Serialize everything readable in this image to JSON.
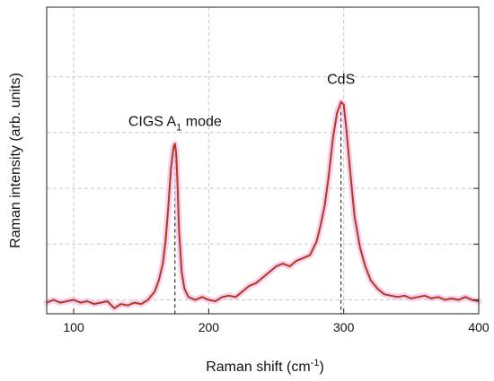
{
  "chart_data": {
    "type": "line",
    "title": "",
    "xlabel": "Raman shift (cm",
    "xlabel_sup": "-1",
    "xlabel_end": ")",
    "ylabel": "Raman intensity (arb. units)",
    "xlim": [
      80,
      400
    ],
    "ylim": [
      0,
      1.1
    ],
    "grid": true,
    "x_ticks": [
      100,
      200,
      300,
      400
    ],
    "x_tick_labels": [
      "100",
      "200",
      "300",
      "400"
    ],
    "y_ticks": [
      0.05,
      0.25,
      0.45,
      0.65,
      0.85
    ],
    "y_tick_labels": [],
    "series": [
      {
        "name": "",
        "color": "#b23a1e",
        "shadow_color": "#f2c4ec",
        "x": [
          80,
          85,
          90,
          95,
          100,
          105,
          110,
          115,
          120,
          125,
          130,
          135,
          140,
          145,
          150,
          155,
          160,
          163,
          166,
          168,
          170,
          172,
          174,
          175,
          176,
          177,
          178,
          180,
          182,
          185,
          190,
          195,
          200,
          205,
          210,
          215,
          220,
          225,
          230,
          235,
          240,
          245,
          250,
          255,
          260,
          265,
          270,
          275,
          280,
          283,
          286,
          289,
          292,
          295,
          298,
          300,
          302,
          305,
          308,
          312,
          316,
          320,
          325,
          330,
          335,
          340,
          345,
          350,
          355,
          360,
          365,
          370,
          375,
          380,
          385,
          390,
          395,
          400
        ],
        "values": [
          0.04,
          0.05,
          0.04,
          0.045,
          0.05,
          0.04,
          0.045,
          0.035,
          0.04,
          0.045,
          0.02,
          0.035,
          0.03,
          0.04,
          0.035,
          0.05,
          0.08,
          0.12,
          0.18,
          0.26,
          0.38,
          0.52,
          0.6,
          0.61,
          0.57,
          0.45,
          0.3,
          0.15,
          0.09,
          0.06,
          0.05,
          0.06,
          0.05,
          0.045,
          0.06,
          0.065,
          0.06,
          0.08,
          0.1,
          0.11,
          0.13,
          0.15,
          0.17,
          0.18,
          0.17,
          0.19,
          0.2,
          0.21,
          0.26,
          0.32,
          0.39,
          0.5,
          0.63,
          0.72,
          0.76,
          0.75,
          0.66,
          0.5,
          0.35,
          0.24,
          0.17,
          0.12,
          0.09,
          0.07,
          0.065,
          0.06,
          0.065,
          0.055,
          0.06,
          0.065,
          0.055,
          0.06,
          0.05,
          0.055,
          0.05,
          0.06,
          0.05,
          0.045
        ]
      }
    ],
    "annotations": [
      {
        "text": "CIGS A",
        "sub": "1",
        "text_end": " mode",
        "x": 175
      },
      {
        "text": "CdS",
        "x": 298
      }
    ]
  }
}
